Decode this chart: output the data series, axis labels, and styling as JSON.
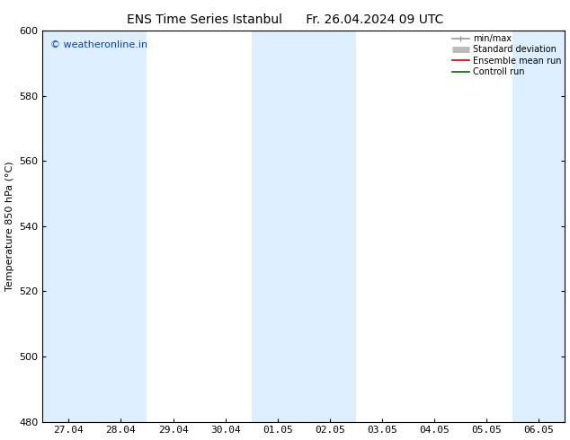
{
  "title": "ENS Time Series Istanbul",
  "date_str": "Fr. 26.04.2024 09 UTC",
  "ylabel": "Temperature 850 hPa (°C)",
  "watermark": "© weatheronline.in",
  "ylim": [
    480,
    600
  ],
  "yticks": [
    480,
    500,
    520,
    540,
    560,
    580,
    600
  ],
  "x_labels": [
    "27.04",
    "28.04",
    "29.04",
    "30.04",
    "01.05",
    "02.05",
    "03.05",
    "04.05",
    "05.05",
    "06.05"
  ],
  "n_dates": 10,
  "shaded_columns": [
    0,
    1,
    4,
    5,
    9
  ],
  "shade_color": "#ddeeff",
  "background_color": "#ffffff",
  "legend_items": [
    {
      "label": "min/max",
      "color": "#999999",
      "lw": 1.2
    },
    {
      "label": "Standard deviation",
      "color": "#bbbbbb",
      "lw": 5
    },
    {
      "label": "Ensemble mean run",
      "color": "#cc0000",
      "lw": 1.2
    },
    {
      "label": "Controll run",
      "color": "#006600",
      "lw": 1.2
    }
  ],
  "title_fontsize": 10,
  "axis_fontsize": 8,
  "tick_fontsize": 8,
  "watermark_color": "#0044bb",
  "watermark_fontsize": 8
}
